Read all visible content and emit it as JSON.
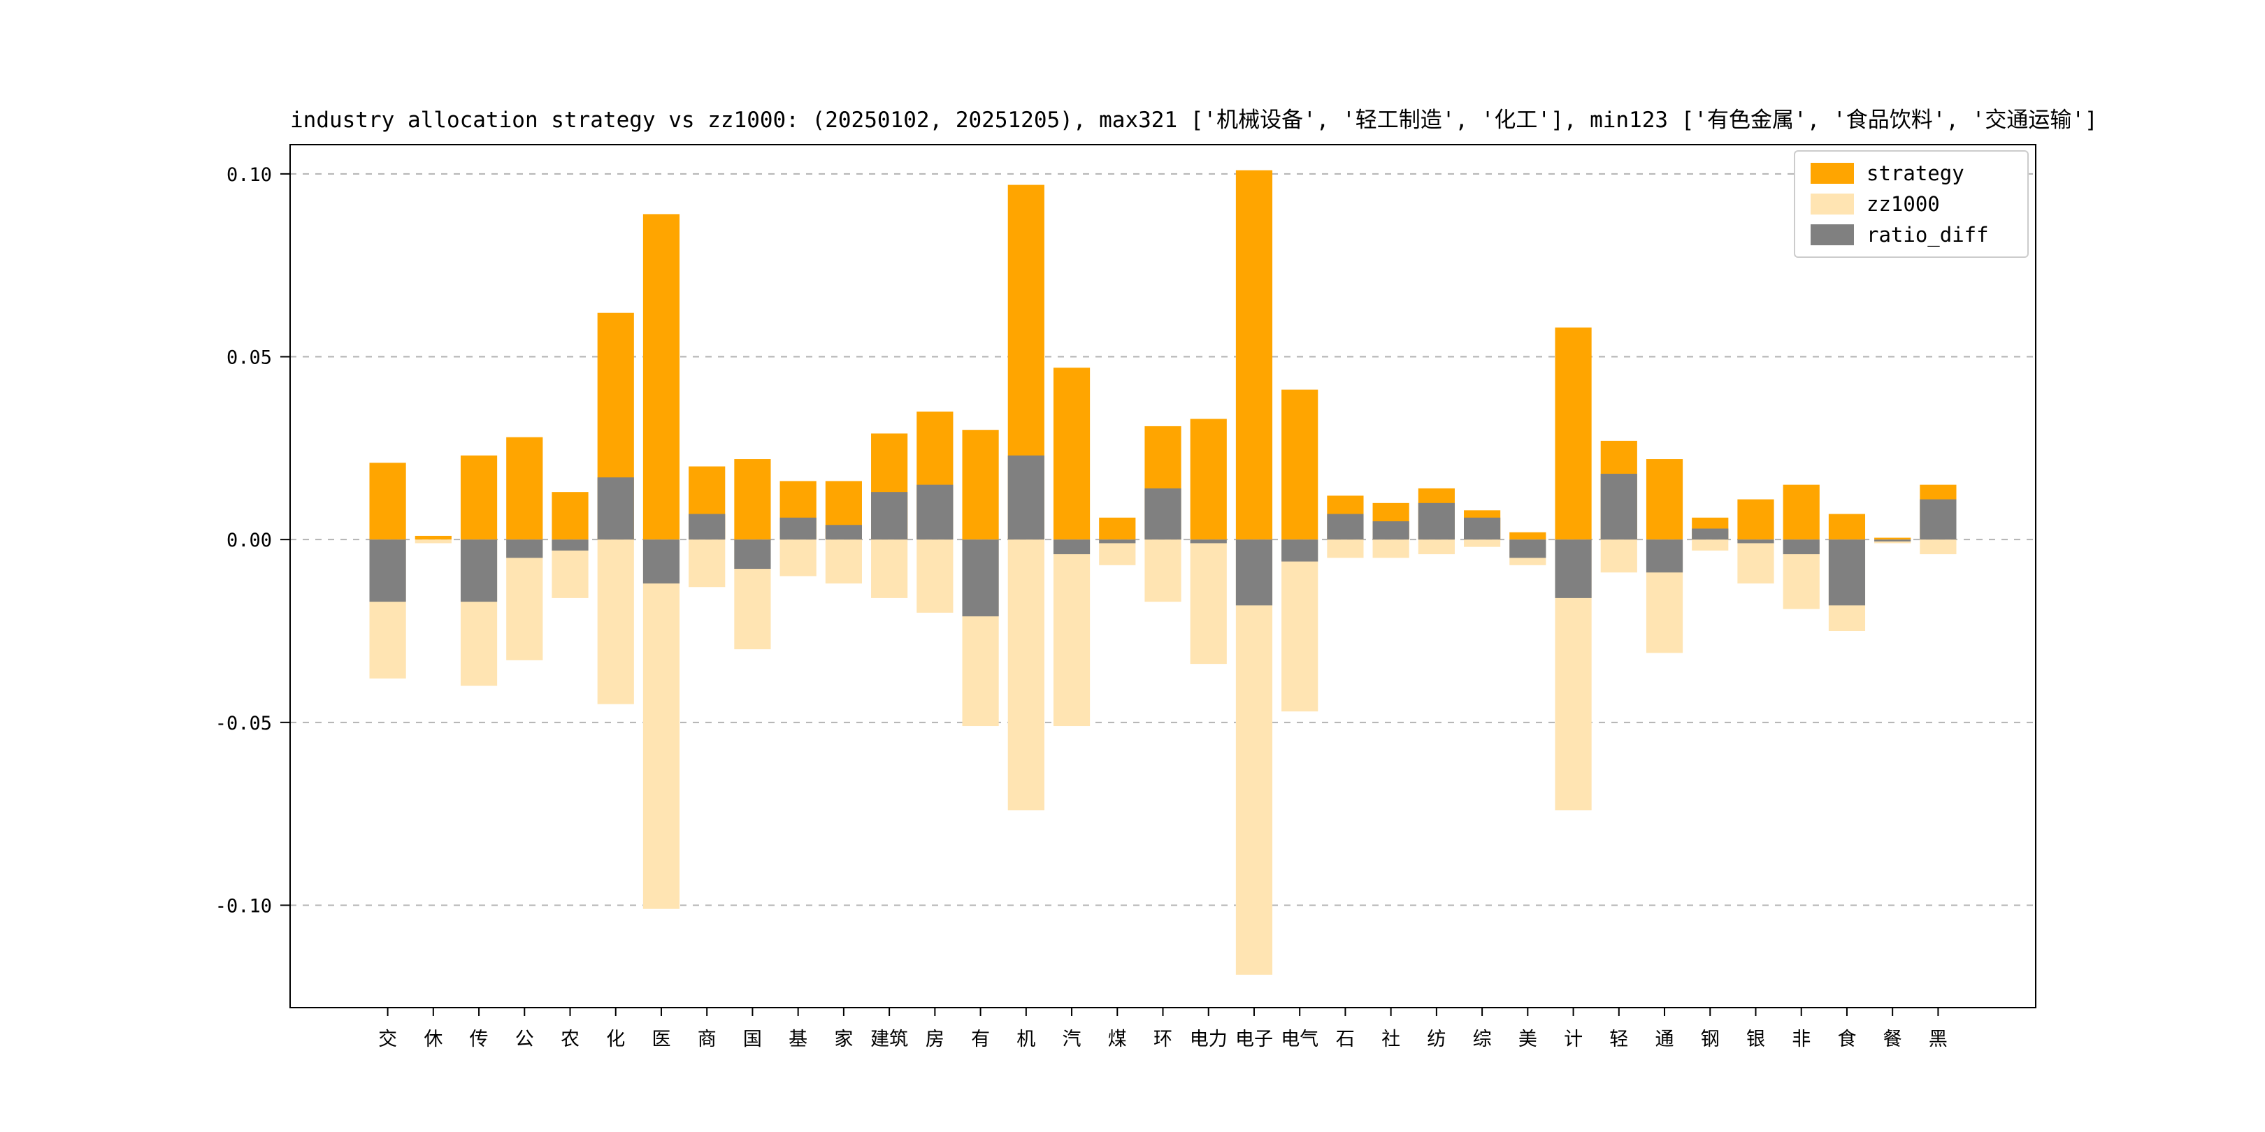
{
  "chart": {
    "title": "industry allocation strategy vs zz1000: (20250102, 20251205), max321 ['机械设备', '轻工制造', '化工'], min123 ['有色金属', '食品饮料', '交通运输']"
  },
  "chart_data": {
    "type": "bar",
    "title": "industry allocation strategy vs zz1000: (20250102, 20251205), max321 ['机械设备', '轻工制造', '化工'], min123 ['有色金属', '食品饮料', '交通运输']",
    "categories": [
      "交",
      "休",
      "传",
      "公",
      "农",
      "化",
      "医",
      "商",
      "国",
      "基",
      "家",
      "建筑",
      "房",
      "有",
      "机",
      "汽",
      "煤",
      "环",
      "电力",
      "电子",
      "电气",
      "石",
      "社",
      "纺",
      "综",
      "美",
      "计",
      "轻",
      "通",
      "钢",
      "银",
      "非",
      "食",
      "餐",
      "黑"
    ],
    "series": [
      {
        "name": "strategy",
        "color": "#FFA500",
        "values": [
          0.021,
          0.001,
          0.023,
          0.028,
          0.013,
          0.062,
          0.089,
          0.02,
          0.022,
          0.016,
          0.016,
          0.029,
          0.035,
          0.03,
          0.097,
          0.047,
          0.006,
          0.031,
          0.033,
          0.101,
          0.041,
          0.012,
          0.01,
          0.014,
          0.008,
          0.002,
          0.058,
          0.027,
          0.022,
          0.006,
          0.011,
          0.015,
          0.007,
          0.0005,
          0.015
        ]
      },
      {
        "name": "zz1000",
        "color": "#FFE4B2",
        "values": [
          -0.038,
          -0.001,
          -0.04,
          -0.033,
          -0.016,
          -0.045,
          -0.101,
          -0.013,
          -0.03,
          -0.01,
          -0.012,
          -0.016,
          -0.02,
          -0.051,
          -0.074,
          -0.051,
          -0.007,
          -0.017,
          -0.034,
          -0.119,
          -0.047,
          -0.005,
          -0.005,
          -0.004,
          -0.002,
          -0.007,
          -0.074,
          -0.009,
          -0.031,
          -0.003,
          -0.012,
          -0.019,
          -0.025,
          -0.001,
          -0.004
        ]
      },
      {
        "name": "ratio_diff",
        "color": "#808080",
        "values": [
          -0.017,
          0.0,
          -0.017,
          -0.005,
          -0.003,
          0.017,
          -0.012,
          0.007,
          -0.008,
          0.006,
          0.004,
          0.013,
          0.015,
          -0.021,
          0.023,
          -0.004,
          -0.001,
          0.014,
          -0.001,
          -0.018,
          -0.006,
          0.007,
          0.005,
          0.01,
          0.006,
          -0.005,
          -0.016,
          0.018,
          -0.009,
          0.003,
          -0.001,
          -0.004,
          -0.018,
          -0.0005,
          0.011
        ]
      }
    ],
    "yticks": [
      {
        "label": "0.10",
        "value": 0.1
      },
      {
        "label": "0.05",
        "value": 0.05
      },
      {
        "label": "0.00",
        "value": 0.0
      },
      {
        "label": "-0.05",
        "value": -0.05
      },
      {
        "label": "-0.10",
        "value": -0.1
      }
    ],
    "ylim": [
      -0.128,
      0.108
    ],
    "xlabel": "",
    "ylabel": "",
    "grid": "dashed-horizontal",
    "legend_position": "upper-right",
    "colors": {
      "grid": "#b3b3b3",
      "frame": "#000000",
      "text": "#000000",
      "background": "#ffffff"
    }
  }
}
